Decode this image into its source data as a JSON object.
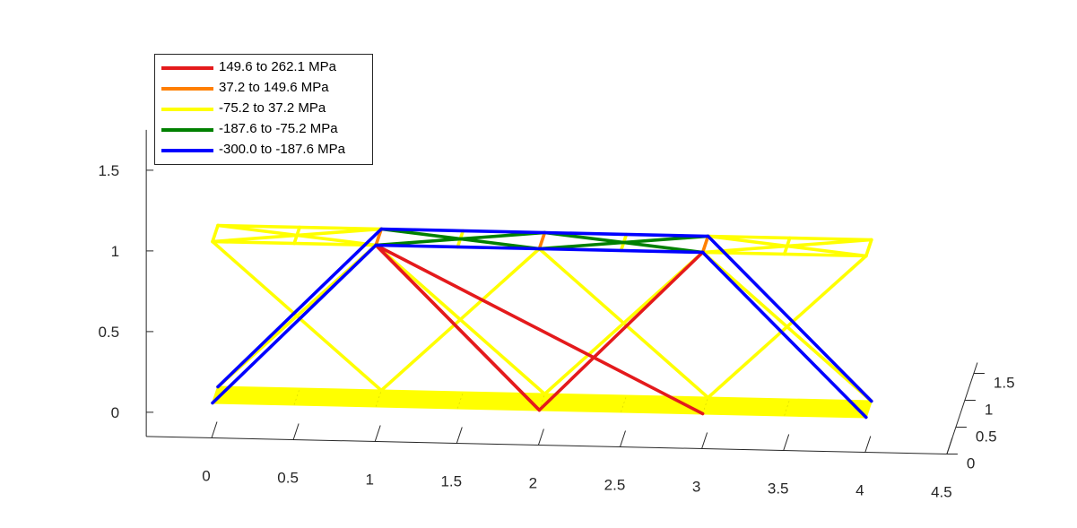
{
  "chart_data": {
    "type": "line",
    "view": "3d",
    "title": "",
    "xlabel": "",
    "ylabel": "",
    "zlabel": "",
    "x_ticks": [
      "0",
      "0.5",
      "1",
      "1.5",
      "2",
      "2.5",
      "3",
      "3.5",
      "4",
      "4.5"
    ],
    "y_ticks": [
      "0",
      "0.5",
      "1",
      "1.5"
    ],
    "z_ticks": [
      "0",
      "0.5",
      "1",
      "1.5"
    ],
    "xlim": [
      -0.4,
      4.5
    ],
    "ylim": [
      -0.15,
      1.75
    ],
    "zlim": [
      0,
      1.7
    ],
    "grid": false,
    "legend": {
      "placement": "top-left",
      "entries": [
        {
          "label": "149.6 to 262.1 MPa",
          "color": "#e41a1c"
        },
        {
          "label": "37.2 to 149.6 MPa",
          "color": "#ff7f00"
        },
        {
          "label": "-75.2 to 37.2 MPa",
          "color": "#ffff00"
        },
        {
          "label": "-187.6 to -75.2 MPa",
          "color": "#008000"
        },
        {
          "label": "-300.0 to -187.6 MPa",
          "color": "#0000ff"
        }
      ]
    },
    "series": [
      {
        "name": "149.6 to 262.1 MPa",
        "color": "#e41a1c",
        "segments": [
          [
            [
              1,
              1.05,
              0.05
            ],
            [
              2,
              0.05,
              0.05
            ]
          ],
          [
            [
              1,
              1.05,
              0.05
            ],
            [
              3,
              0.05,
              0.05
            ]
          ],
          [
            [
              2,
              0.05,
              0.05
            ],
            [
              3,
              1.05,
              0.05
            ]
          ],
          [
            [
              2,
              0.05,
              0.05
            ],
            [
              1,
              1.05,
              0.05
            ]
          ]
        ]
      },
      {
        "name": "37.2 to 149.6 MPa",
        "color": "#ff7f00",
        "segments": [
          [
            [
              1,
              1.05,
              0.05
            ],
            [
              1,
              1.05,
              0.35
            ]
          ],
          [
            [
              2,
              1.05,
              0.05
            ],
            [
              2,
              1.05,
              0.35
            ]
          ],
          [
            [
              3,
              1.05,
              0.05
            ],
            [
              3,
              1.05,
              0.35
            ]
          ]
        ]
      },
      {
        "name": "-75.2 to 37.2 MPa",
        "color": "#ffff00",
        "segments": [
          [
            [
              0,
              1.05,
              0.05
            ],
            [
              0,
              1.05,
              0.35
            ]
          ],
          [
            [
              0,
              1.05,
              0.05
            ],
            [
              1,
              1.05,
              0.05
            ]
          ],
          [
            [
              0,
              1.05,
              0.35
            ],
            [
              1,
              1.05,
              0.35
            ]
          ],
          [
            [
              0,
              1.05,
              0.05
            ],
            [
              1,
              1.05,
              0.35
            ]
          ],
          [
            [
              0,
              1.05,
              0.35
            ],
            [
              1,
              1.05,
              0.05
            ]
          ],
          [
            [
              0.5,
              1.05,
              0.05
            ],
            [
              0.5,
              1.05,
              0.35
            ]
          ],
          [
            [
              1.5,
              1.05,
              0.05
            ],
            [
              1.5,
              1.05,
              0.35
            ]
          ],
          [
            [
              2.5,
              1.05,
              0.05
            ],
            [
              2.5,
              1.05,
              0.35
            ]
          ],
          [
            [
              3,
              1.05,
              0.05
            ],
            [
              4,
              1.05,
              0.05
            ]
          ],
          [
            [
              3,
              1.05,
              0.35
            ],
            [
              4,
              1.05,
              0.35
            ]
          ],
          [
            [
              3,
              1.05,
              0.05
            ],
            [
              4,
              1.05,
              0.35
            ]
          ],
          [
            [
              3,
              1.05,
              0.35
            ],
            [
              4,
              1.05,
              0.05
            ]
          ],
          [
            [
              3.5,
              1.05,
              0.05
            ],
            [
              3.5,
              1.05,
              0.35
            ]
          ],
          [
            [
              4,
              1.05,
              0.05
            ],
            [
              4,
              1.05,
              0.35
            ]
          ],
          [
            [
              0,
              1.05,
              0.05
            ],
            [
              1,
              0.05,
              0.35
            ]
          ],
          [
            [
              1,
              0.05,
              0.35
            ],
            [
              2,
              1.05,
              0.05
            ]
          ],
          [
            [
              2,
              1.05,
              0.05
            ],
            [
              3,
              0.05,
              0.35
            ]
          ],
          [
            [
              3,
              0.05,
              0.35
            ],
            [
              4,
              1.05,
              0.05
            ]
          ],
          [
            [
              1,
              1.05,
              0.05
            ],
            [
              0,
              0.05,
              0.35
            ]
          ],
          [
            [
              1,
              1.05,
              0.05
            ],
            [
              2,
              0.05,
              0.35
            ]
          ],
          [
            [
              2,
              0.05,
              0.35
            ],
            [
              3,
              1.05,
              0.05
            ]
          ],
          [
            [
              3,
              1.05,
              0.05
            ],
            [
              4,
              0.05,
              0.35
            ]
          ]
        ]
      },
      {
        "name": "-187.6 to -75.2 MPa",
        "color": "#008000",
        "segments": [
          [
            [
              1,
              1.05,
              0.35
            ],
            [
              2,
              1.05,
              0.05
            ]
          ],
          [
            [
              1,
              1.05,
              0.05
            ],
            [
              2,
              1.05,
              0.35
            ]
          ],
          [
            [
              2,
              1.05,
              0.35
            ],
            [
              3,
              1.05,
              0.05
            ]
          ],
          [
            [
              2,
              1.05,
              0.05
            ],
            [
              3,
              1.05,
              0.35
            ]
          ]
        ]
      },
      {
        "name": "-300.0 to -187.6 MPa",
        "color": "#0000ff",
        "segments": [
          [
            [
              1,
              1.05,
              0.35
            ],
            [
              3,
              1.05,
              0.35
            ]
          ],
          [
            [
              1,
              1.05,
              0.05
            ],
            [
              3,
              1.05,
              0.05
            ]
          ],
          [
            [
              0,
              0.05,
              0.05
            ],
            [
              1,
              1.05,
              0.05
            ]
          ],
          [
            [
              0,
              0.05,
              0.35
            ],
            [
              1,
              1.05,
              0.35
            ]
          ],
          [
            [
              3,
              1.05,
              0.05
            ],
            [
              4,
              0.05,
              0.05
            ]
          ],
          [
            [
              3,
              1.05,
              0.35
            ],
            [
              4,
              0.05,
              0.35
            ]
          ]
        ]
      }
    ],
    "deck": {
      "color": "#ffff00",
      "x": [
        0,
        4
      ],
      "y": 0.05,
      "z": [
        0.05,
        0.35
      ]
    }
  }
}
